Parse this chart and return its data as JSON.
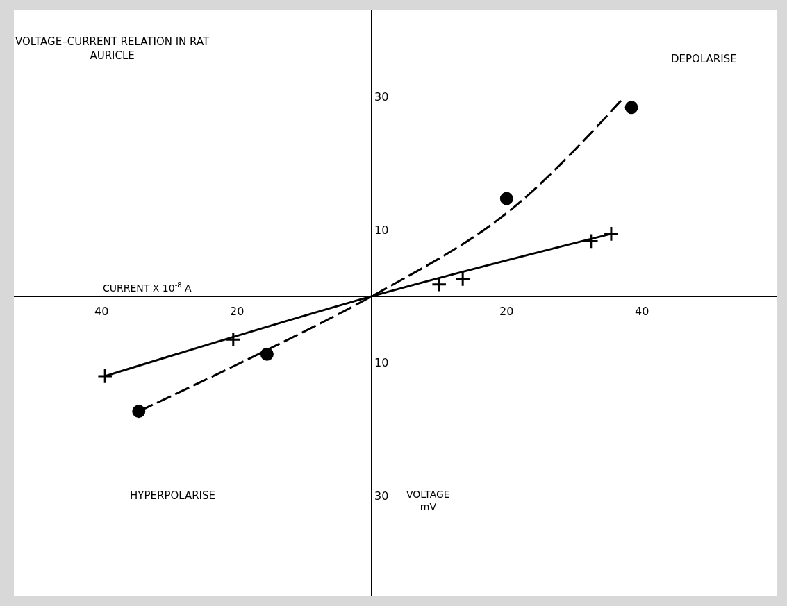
{
  "chart_data": {
    "type": "scatter",
    "title": "VOLTAGE–CURRENT RELATION IN RAT\nAURICLE",
    "xlabel": "CURRENT X 10$^{-8}$ A",
    "ylabel": "VOLTAGE\nmV",
    "annotations": [
      "DEPOLARISE",
      "HYPERPOLARISE"
    ],
    "xlim": [
      -53,
      60
    ],
    "ylim": [
      -45,
      43
    ],
    "xticks": [
      {
        "value": -40,
        "label": "40"
      },
      {
        "value": -20,
        "label": "20"
      },
      20,
      40
    ],
    "yticks": [
      {
        "value": -30,
        "label": "30"
      },
      {
        "value": -10,
        "label": "10"
      },
      10,
      30
    ],
    "series": [
      {
        "marker": "circle",
        "color": "#000000",
        "x": [
          -34.5,
          -15.5,
          20,
          38.5
        ],
        "values": [
          -17.3,
          -8.7,
          14.7,
          28.4
        ]
      },
      {
        "marker": "cross",
        "color": "#000000",
        "x": [
          -39.5,
          -20.5,
          10,
          13.5,
          32.5,
          35.5
        ],
        "values": [
          -12,
          -6.5,
          1.8,
          2.6,
          8.3,
          9.4
        ]
      },
      {
        "type": "line",
        "line_style": "dashed",
        "marker": "none",
        "color": "#000000",
        "x": [
          -34.5,
          0,
          20,
          37
        ],
        "values": [
          -17.3,
          0,
          12.5,
          29.5
        ]
      },
      {
        "type": "line",
        "line_style": "solid",
        "marker": "none",
        "color": "#000000",
        "x": [
          -39.5,
          0,
          35.5
        ],
        "values": [
          -12,
          0,
          9.4
        ]
      }
    ]
  }
}
